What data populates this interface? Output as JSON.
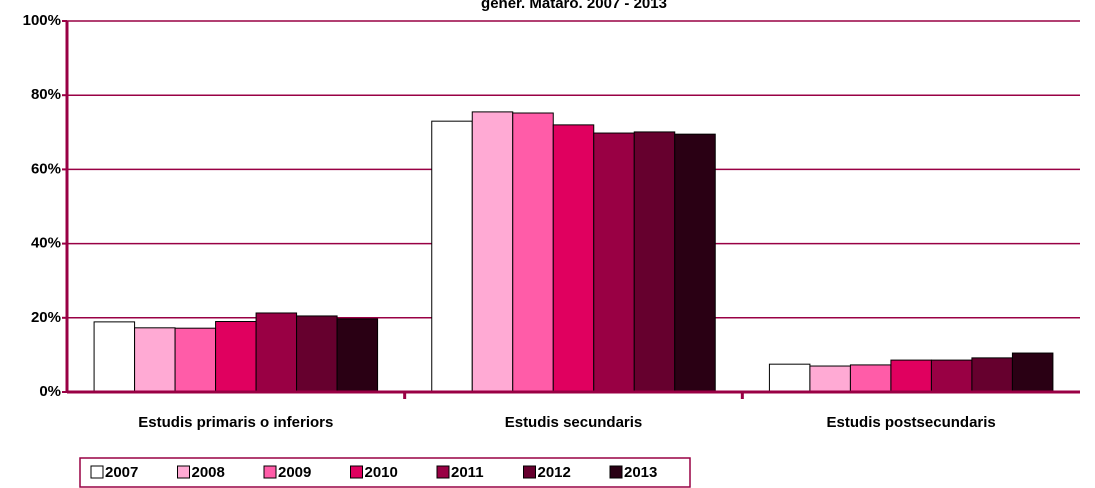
{
  "chart_data": {
    "type": "bar",
    "title": "gener. Mataró. 2007 - 2013",
    "categories": [
      "Estudis primaris o inferiors",
      "Estudis secundaris",
      "Estudis postsecundaris"
    ],
    "series": [
      {
        "name": "2007",
        "color": "#ffffff",
        "values": [
          18.9,
          73.0,
          7.5
        ]
      },
      {
        "name": "2008",
        "color": "#ffaad4",
        "values": [
          17.3,
          75.5,
          7.0
        ]
      },
      {
        "name": "2009",
        "color": "#ff5ca8",
        "values": [
          17.2,
          75.2,
          7.3
        ]
      },
      {
        "name": "2010",
        "color": "#e0005f",
        "values": [
          19.0,
          72.0,
          8.6
        ]
      },
      {
        "name": "2011",
        "color": "#990044",
        "values": [
          21.3,
          69.8,
          8.6
        ]
      },
      {
        "name": "2012",
        "color": "#66002e",
        "values": [
          20.5,
          70.1,
          9.2
        ]
      },
      {
        "name": "2013",
        "color": "#2a0014",
        "values": [
          19.7,
          69.5,
          10.5
        ]
      }
    ],
    "ylim": [
      0,
      100
    ],
    "yticks": [
      {
        "value": 0,
        "label": "0%"
      },
      {
        "value": 20,
        "label": "20%"
      },
      {
        "value": 40,
        "label": "40%"
      },
      {
        "value": 60,
        "label": "60%"
      },
      {
        "value": 80,
        "label": "80%"
      },
      {
        "value": 100,
        "label": "100%"
      }
    ],
    "grid": true,
    "legend": "bottom"
  }
}
